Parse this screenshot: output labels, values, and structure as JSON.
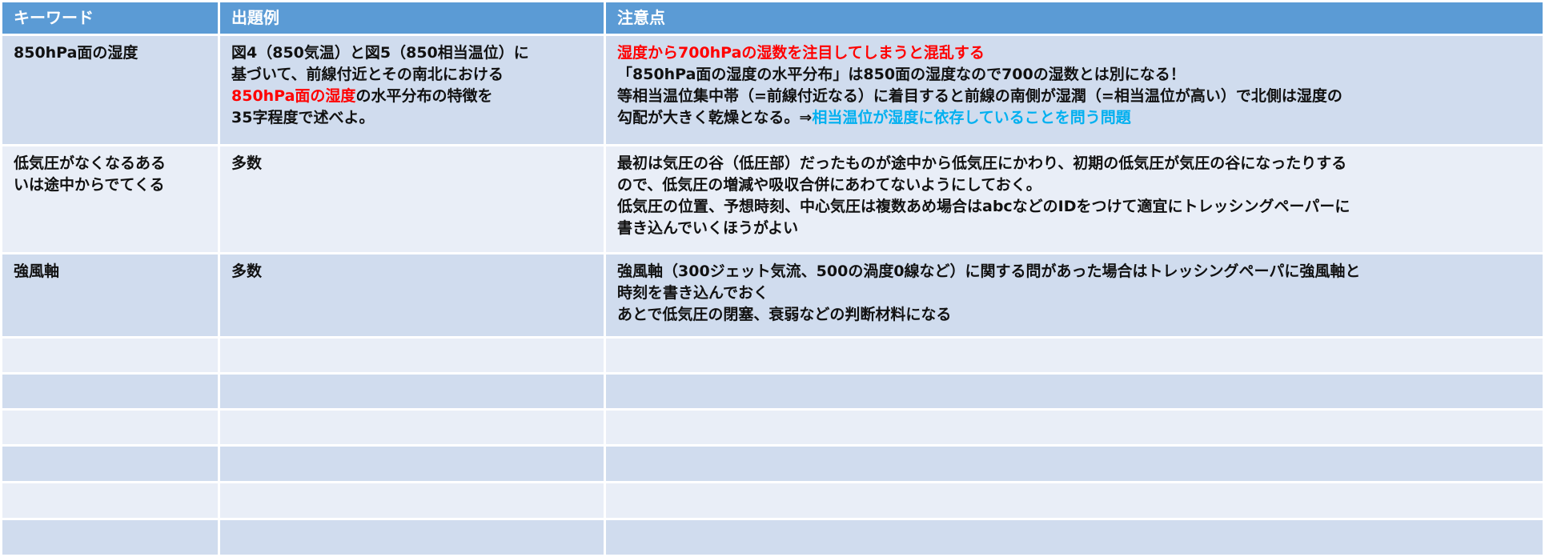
{
  "table": {
    "headers": [
      "キーワード",
      "出題例",
      "注意点"
    ],
    "colors": {
      "header": "#5B9BD5",
      "row_odd": "#D0DCEE",
      "row_even": "#E9EEF7",
      "highlight_red": "#FF0000",
      "highlight_blue": "#00B0F0"
    },
    "rows": [
      {
        "keyword": [
          [
            {
              "t": "850hPa面の湿度"
            }
          ]
        ],
        "example": [
          [
            {
              "t": "図4（850気温）と図5（850相当温位）に"
            }
          ],
          [
            {
              "t": "基づいて、前線付近とその南北における"
            }
          ],
          [
            {
              "t": "850hPa面の湿度",
              "c": "red"
            },
            {
              "t": "の水平分布の特徴を"
            }
          ],
          [
            {
              "t": "35字程度で述べよ。"
            }
          ]
        ],
        "notes": [
          [
            {
              "t": "湿度から700hPaの湿数を注目してしまうと混乱する",
              "c": "red"
            }
          ],
          [
            {
              "t": "「850hPa面の湿度の水平分布」は850面の湿度なので700の湿数とは別になる！"
            }
          ],
          [
            {
              "t": "等相当温位集中帯（=前線付近なる）に着目すると前線の南側が湿潤（=相当温位が高い）で北側は湿度の"
            }
          ],
          [
            {
              "t": "勾配が大きく乾燥となる。⇒"
            },
            {
              "t": "相当温位が湿度に依存していることを問う問題",
              "c": "blue"
            }
          ]
        ]
      },
      {
        "keyword": [
          [
            {
              "t": "低気圧がなくなるある"
            }
          ],
          [
            {
              "t": "いは途中からでてくる"
            }
          ]
        ],
        "example": [
          [
            {
              "t": "多数"
            }
          ]
        ],
        "notes": [
          [
            {
              "t": "最初は気圧の谷（低圧部）だったものが途中から低気圧にかわり、初期の低気圧が気圧の谷になったりする"
            }
          ],
          [
            {
              "t": "ので、低気圧の増減や吸収合併にあわてないようにしておく。"
            }
          ],
          [
            {
              "t": "低気圧の位置、予想時刻、中心気圧は複数あめ場合はabcなどのIDをつけて適宜にトレッシングペーパーに"
            }
          ],
          [
            {
              "t": "書き込んでいくほうがよい"
            }
          ]
        ]
      },
      {
        "keyword": [
          [
            {
              "t": "強風軸"
            }
          ]
        ],
        "example": [
          [
            {
              "t": "多数"
            }
          ]
        ],
        "notes": [
          [
            {
              "t": "強風軸（300ジェット気流、500の渦度0線など）に関する問があった場合はトレッシングペーパに強風軸と"
            }
          ],
          [
            {
              "t": "時刻を書き込んでおく"
            }
          ],
          [
            {
              "t": "あとで低気圧の閉塞、衰弱などの判断材料になる"
            }
          ]
        ]
      },
      {
        "keyword": [],
        "example": [],
        "notes": []
      },
      {
        "keyword": [],
        "example": [],
        "notes": []
      },
      {
        "keyword": [],
        "example": [],
        "notes": []
      },
      {
        "keyword": [],
        "example": [],
        "notes": []
      },
      {
        "keyword": [],
        "example": [],
        "notes": []
      },
      {
        "keyword": [],
        "example": [],
        "notes": []
      }
    ]
  }
}
